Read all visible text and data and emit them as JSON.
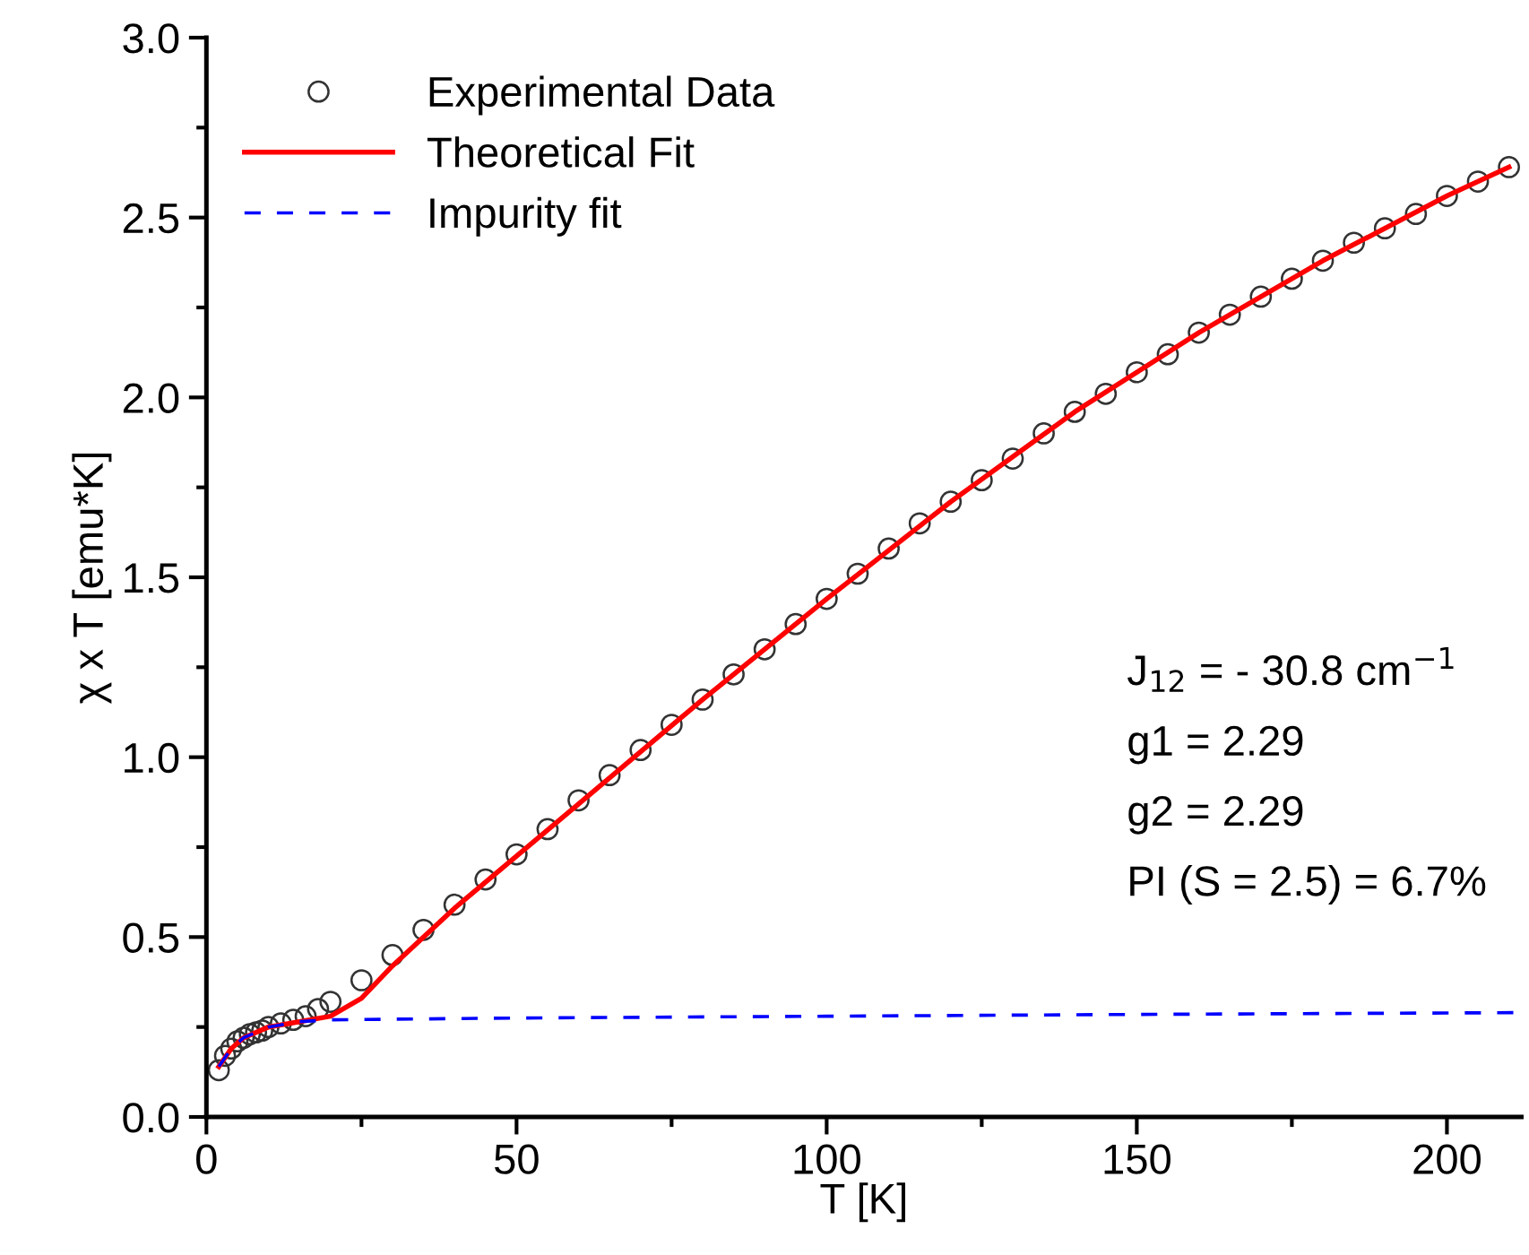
{
  "chart_data": {
    "type": "scatter",
    "xlabel": "T [K]",
    "ylabel": "χ x T [emu*K]",
    "xlim": [
      0,
      212
    ],
    "ylim": [
      0,
      3.0
    ],
    "xticks": [
      0,
      50,
      100,
      150,
      200
    ],
    "yticks": [
      {
        "value": 0,
        "label": "0.0"
      },
      0.5,
      {
        "value": 1,
        "label": "1.0"
      },
      1.5,
      {
        "value": 2,
        "label": "2.0"
      },
      2.5,
      {
        "value": 3,
        "label": "3.0"
      }
    ],
    "grid": false,
    "legend": "top left",
    "series": [
      {
        "name": "Experimental Data",
        "marker": "circle",
        "color": "#333333",
        "x": [
          2,
          3,
          4,
          5,
          6,
          7,
          8,
          9,
          10,
          12,
          14,
          16,
          18,
          20,
          25,
          30,
          35,
          40,
          45,
          50,
          55,
          60,
          65,
          70,
          75,
          80,
          85,
          90,
          95,
          100,
          105,
          110,
          115,
          120,
          125,
          130,
          135,
          140,
          145,
          150,
          155,
          160,
          165,
          170,
          175,
          180,
          185,
          190,
          195,
          200,
          205,
          210
        ],
        "values": [
          0.13,
          0.17,
          0.19,
          0.21,
          0.22,
          0.23,
          0.235,
          0.24,
          0.25,
          0.26,
          0.27,
          0.28,
          0.3,
          0.32,
          0.38,
          0.45,
          0.52,
          0.59,
          0.66,
          0.73,
          0.8,
          0.88,
          0.95,
          1.02,
          1.09,
          1.16,
          1.23,
          1.3,
          1.37,
          1.44,
          1.51,
          1.58,
          1.65,
          1.71,
          1.77,
          1.83,
          1.9,
          1.96,
          2.01,
          2.07,
          2.12,
          2.18,
          2.23,
          2.28,
          2.33,
          2.38,
          2.43,
          2.47,
          2.51,
          2.56,
          2.6,
          2.64
        ]
      },
      {
        "name": "Theoretical Fit",
        "type": "line",
        "line_style": "solid",
        "color": "#ff0000",
        "x": [
          2,
          4,
          6,
          10,
          15,
          20,
          25,
          30,
          40,
          60,
          80,
          100,
          120,
          140,
          160,
          180,
          200,
          210
        ],
        "values": [
          0.14,
          0.19,
          0.22,
          0.25,
          0.265,
          0.28,
          0.33,
          0.42,
          0.58,
          0.87,
          1.16,
          1.44,
          1.71,
          1.96,
          2.18,
          2.38,
          2.56,
          2.64
        ]
      },
      {
        "name": "Impurity fit",
        "type": "line",
        "line_style": "dashed",
        "color": "#0000ff",
        "x": [
          2,
          4,
          6,
          10,
          15,
          20,
          50,
          100,
          150,
          212
        ],
        "values": [
          0.14,
          0.19,
          0.22,
          0.25,
          0.265,
          0.27,
          0.275,
          0.28,
          0.285,
          0.29
        ]
      }
    ],
    "annotations": [
      "J$_{12}$ = - 30.8 cm$^{−1}$",
      "g1 = 2.29",
      "g2 = 2.29",
      "PI (S = 2.5) = 6.7%"
    ]
  }
}
